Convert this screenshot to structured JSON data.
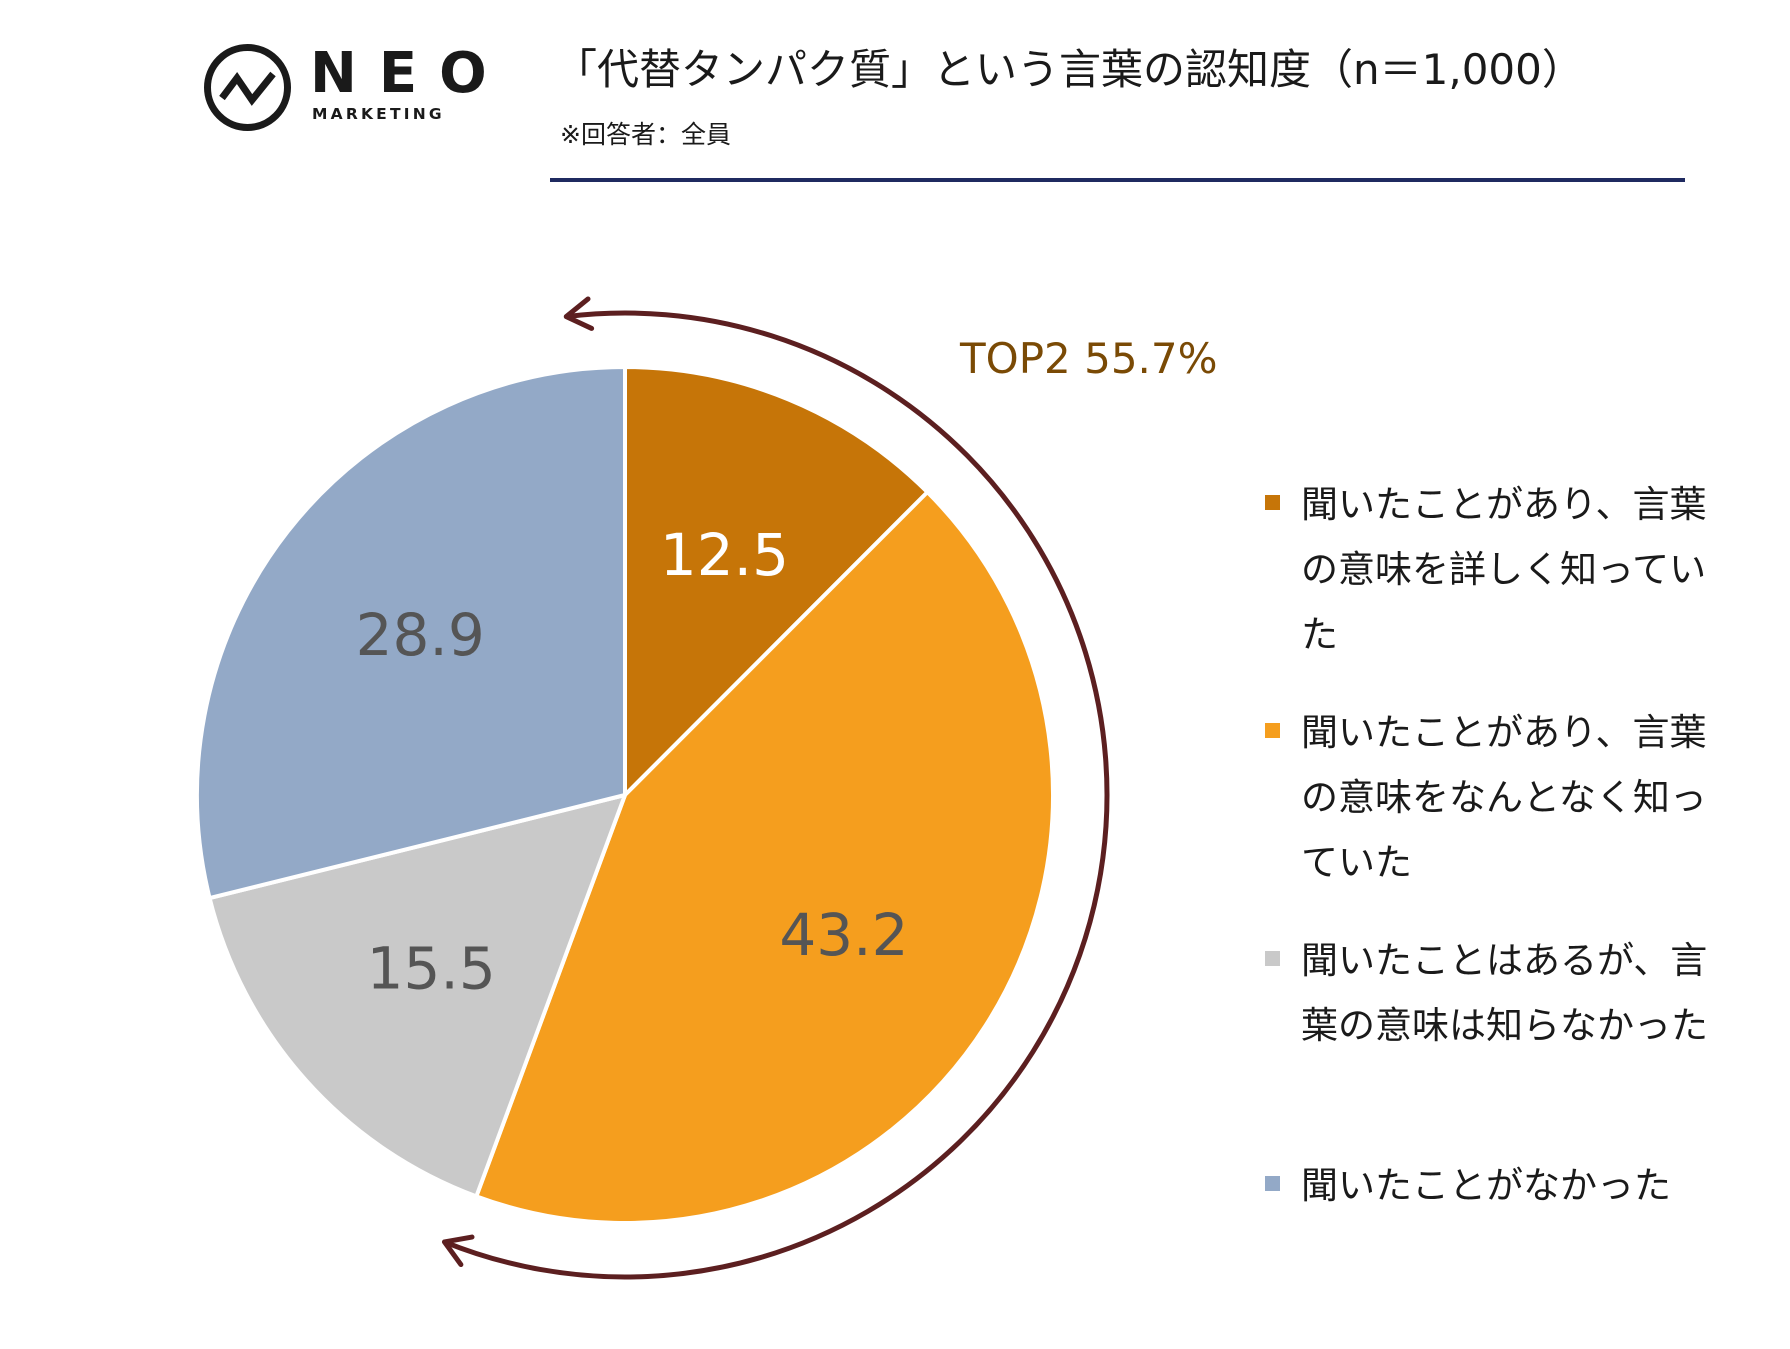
{
  "logo": {
    "name": "NEO",
    "sub": "MARKETING"
  },
  "title": "「代替タンパク質」という言葉の認知度（n＝1,000）",
  "note": "※回答者：全員",
  "top2_label": "TOP2 55.7%",
  "colors": {
    "accent_rule": "#1f2a60",
    "arrow": "#5c1f20",
    "top2_text": "#7a4a05",
    "label_light": "#ffffff",
    "label_dark": "#555555"
  },
  "chart_data": {
    "type": "pie",
    "start_angle_deg": 0,
    "direction": "clockwise",
    "slices": [
      {
        "label": "聞いたことがあり、言葉の意味を詳しく知っていた",
        "value": 12.5,
        "value_label": "12.5",
        "color": "#c67508"
      },
      {
        "label": "聞いたことがあり、言葉の意味をなんとなく知っていた",
        "value": 43.2,
        "value_label": "43.2",
        "color": "#f59e1e"
      },
      {
        "label": "聞いたことはあるが、言葉の意味は知らなかった",
        "value": 15.5,
        "value_label": "15.5",
        "color": "#c9c9c9"
      },
      {
        "label": "聞いたことがなかった",
        "value": 28.9,
        "value_label": "28.9",
        "color": "#93a9c7"
      }
    ],
    "legend_position": "right"
  }
}
